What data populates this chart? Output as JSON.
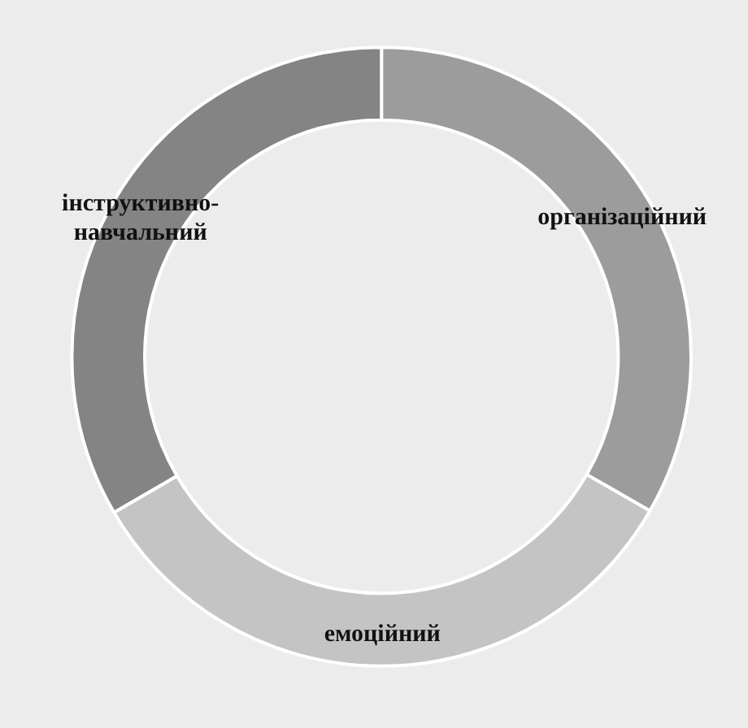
{
  "chart_data": {
    "type": "donut",
    "categories": [
      "організаційний",
      "емоційний",
      "інструктивно-навчальний"
    ],
    "values": [
      33.3,
      33.3,
      33.4
    ],
    "colors": [
      "#9c9c9c",
      "#c4c4c4",
      "#848484"
    ]
  }
}
